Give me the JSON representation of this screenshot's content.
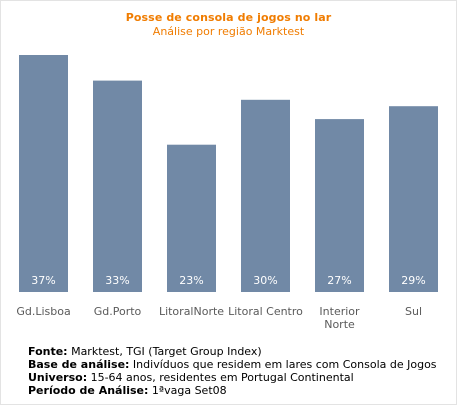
{
  "chart_data": {
    "type": "bar",
    "title": "Posse de consola de jogos no lar",
    "subtitle": "Análise por região Marktest",
    "categories": [
      "Gd.Lisboa",
      "Gd.Porto",
      "LitoralNorte",
      "Litoral Centro",
      "Interior Norte",
      "Sul"
    ],
    "category_lines": [
      [
        "Gd.Lisboa"
      ],
      [
        "Gd.Porto"
      ],
      [
        "LitoralNorte"
      ],
      [
        "Litoral Centro"
      ],
      [
        "Interior",
        "Norte"
      ],
      [
        "Sul"
      ]
    ],
    "values": [
      37,
      33,
      23,
      30,
      27,
      29
    ],
    "data_labels": [
      "37%",
      "33%",
      "23%",
      "30%",
      "27%",
      "29%"
    ],
    "unit": "%",
    "bar_color": "#7189a6",
    "label_color": "#ffffff",
    "title_color": "#f07c00",
    "grid": false,
    "legend": "none"
  },
  "notes": [
    {
      "label": "Fonte:",
      "text": " Marktest, TGI (Target Group Index)"
    },
    {
      "label": "Base de análise:",
      "text": " Indivíduos que residem em lares com Consola de Jogos"
    },
    {
      "label": "Universo:",
      "text": " 15-64 anos, residentes em Portugal Continental"
    },
    {
      "label": "Período de Análise:",
      "text": " 1ªvaga Set08"
    }
  ]
}
